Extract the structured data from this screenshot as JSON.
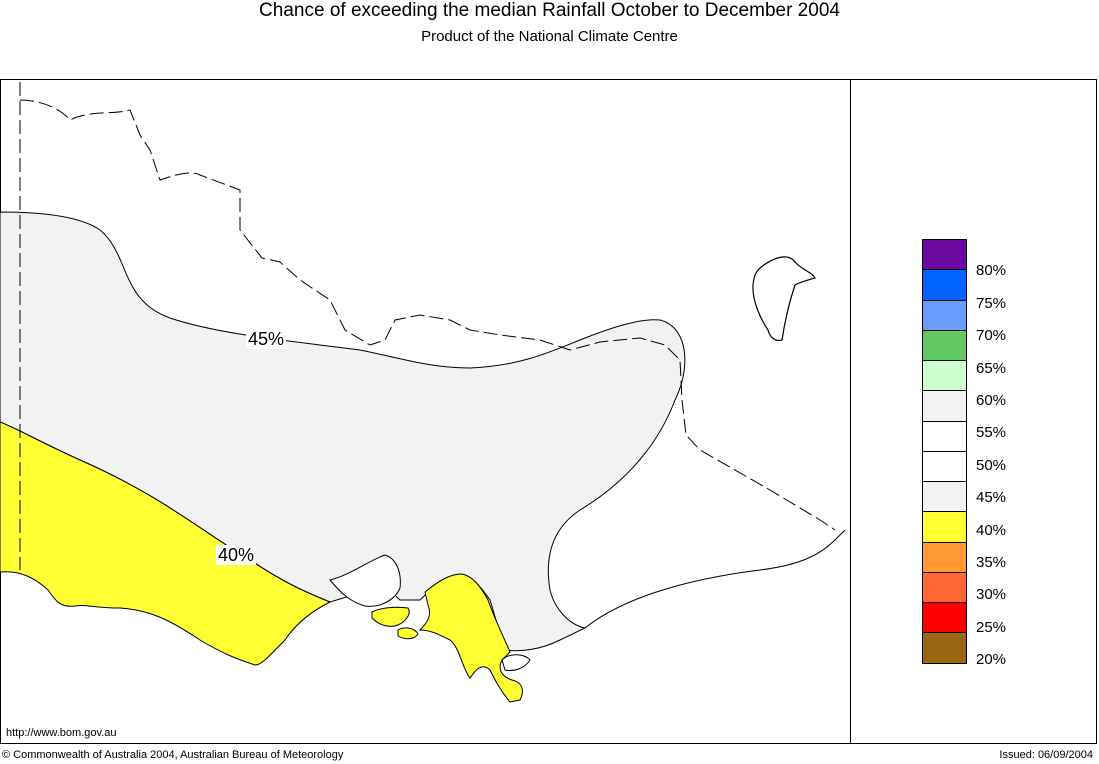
{
  "header": {
    "title": "Chance of exceeding the median Rainfall October to December 2004",
    "subtitle": "Product of the National Climate Centre"
  },
  "map": {
    "contour_labels": [
      {
        "text": "45%"
      },
      {
        "text": "40%"
      }
    ],
    "url": "http://www.bom.gov.au"
  },
  "legend": {
    "items": [
      {
        "color": "#6a0aa0",
        "label": "80%"
      },
      {
        "color": "#0062ff",
        "label": "75%"
      },
      {
        "color": "#6a9cff",
        "label": "70%"
      },
      {
        "color": "#62c862",
        "label": "65%"
      },
      {
        "color": "#ccffcc",
        "label": "60%"
      },
      {
        "color": "#f2f2f2",
        "label": "55%"
      },
      {
        "color": "#ffffff",
        "label": "50%"
      },
      {
        "color": "#ffffff",
        "label": "45%"
      },
      {
        "color": "#f2f2f2",
        "label": "40%"
      },
      {
        "color": "#ffff33",
        "label": "35%"
      },
      {
        "color": "#ff9933",
        "label": "30%"
      },
      {
        "color": "#ff6633",
        "label": "25%"
      },
      {
        "color": "#ff0000",
        "label": "20%"
      },
      {
        "color": "#996611",
        "label": ""
      }
    ]
  },
  "footer": {
    "copyright": "© Commonwealth of Australia 2004, Australian Bureau of Meteorology",
    "issued": "Issued: 06/09/2004"
  }
}
